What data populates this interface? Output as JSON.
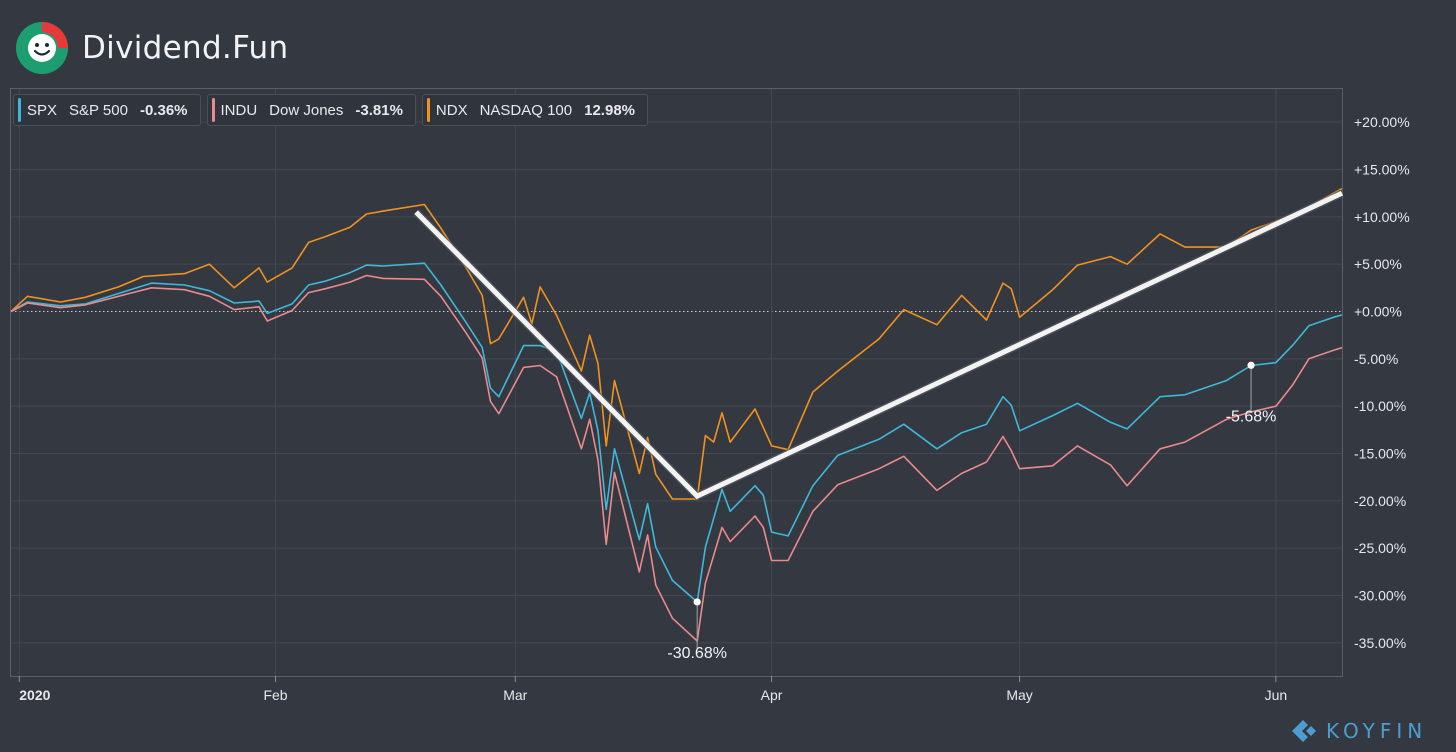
{
  "brand": {
    "name": "Dividend.Fun",
    "logo_icon": "smiley-logo-icon",
    "colors": {
      "ring": "#1d9e70",
      "accent": "#e8393a"
    }
  },
  "watermark": {
    "text": "KOYFIN",
    "icon": "koyfin-diamond-icon",
    "color": "#4d9dd0"
  },
  "legend": [
    {
      "ticker": "SPX",
      "name": "S&P 500",
      "change": "-0.36%",
      "color": "#3fb8d8"
    },
    {
      "ticker": "INDU",
      "name": "Dow Jones",
      "change": "-3.81%",
      "color": "#e98a8c"
    },
    {
      "ticker": "NDX",
      "name": "NASDAQ 100",
      "change": "12.98%",
      "color": "#f0921f"
    }
  ],
  "chart_data": {
    "type": "line",
    "ylim": [
      -38.5,
      23.5
    ],
    "y_ticks": [
      20,
      15,
      10,
      5,
      0,
      -5,
      -10,
      -15,
      -20,
      -25,
      -30,
      -35
    ],
    "y_tick_labels": [
      "+20.00%",
      "+15.00%",
      "+10.00%",
      "+5.00%",
      "+0.00%",
      "-5.00%",
      "-10.00%",
      "-15.00%",
      "-20.00%",
      "-25.00%",
      "-30.00%",
      "-35.00%"
    ],
    "x_domain": [
      "2019-12-31",
      "2020-06-09"
    ],
    "x_ticks": [
      {
        "date": "2020-01-01",
        "label": "2020"
      },
      {
        "date": "2020-02-01",
        "label": "Feb"
      },
      {
        "date": "2020-03-01",
        "label": "Mar"
      },
      {
        "date": "2020-04-01",
        "label": "Apr"
      },
      {
        "date": "2020-05-01",
        "label": "May"
      },
      {
        "date": "2020-06-01",
        "label": "Jun"
      }
    ],
    "grid": true,
    "series": [
      {
        "name": "NDX",
        "color": "#f0921f",
        "points": [
          [
            "2019-12-31",
            0
          ],
          [
            "2020-01-02",
            1.6
          ],
          [
            "2020-01-06",
            1.0
          ],
          [
            "2020-01-09",
            1.5
          ],
          [
            "2020-01-13",
            2.6
          ],
          [
            "2020-01-16",
            3.7
          ],
          [
            "2020-01-21",
            4.0
          ],
          [
            "2020-01-24",
            5.0
          ],
          [
            "2020-01-27",
            2.5
          ],
          [
            "2020-01-30",
            4.6
          ],
          [
            "2020-01-31",
            3.1
          ],
          [
            "2020-02-03",
            4.6
          ],
          [
            "2020-02-05",
            7.3
          ],
          [
            "2020-02-07",
            7.9
          ],
          [
            "2020-02-10",
            8.9
          ],
          [
            "2020-02-12",
            10.3
          ],
          [
            "2020-02-14",
            10.6
          ],
          [
            "2020-02-19",
            11.3
          ],
          [
            "2020-02-21",
            8.8
          ],
          [
            "2020-02-24",
            4.7
          ],
          [
            "2020-02-26",
            1.7
          ],
          [
            "2020-02-27",
            -3.4
          ],
          [
            "2020-02-28",
            -2.9
          ],
          [
            "2020-03-02",
            1.5
          ],
          [
            "2020-03-03",
            -1.3
          ],
          [
            "2020-03-04",
            2.6
          ],
          [
            "2020-03-06",
            -0.4
          ],
          [
            "2020-03-09",
            -6.3
          ],
          [
            "2020-03-10",
            -2.5
          ],
          [
            "2020-03-11",
            -5.5
          ],
          [
            "2020-03-12",
            -14.2
          ],
          [
            "2020-03-13",
            -7.3
          ],
          [
            "2020-03-16",
            -17.1
          ],
          [
            "2020-03-17",
            -13.3
          ],
          [
            "2020-03-18",
            -17.2
          ],
          [
            "2020-03-20",
            -19.8
          ],
          [
            "2020-03-23",
            -19.8
          ],
          [
            "2020-03-24",
            -13.1
          ],
          [
            "2020-03-25",
            -13.8
          ],
          [
            "2020-03-26",
            -10.7
          ],
          [
            "2020-03-27",
            -13.8
          ],
          [
            "2020-03-30",
            -10.3
          ],
          [
            "2020-04-01",
            -14.2
          ],
          [
            "2020-04-03",
            -14.6
          ],
          [
            "2020-04-06",
            -8.5
          ],
          [
            "2020-04-09",
            -6.3
          ],
          [
            "2020-04-14",
            -2.9
          ],
          [
            "2020-04-17",
            0.2
          ],
          [
            "2020-04-21",
            -1.4
          ],
          [
            "2020-04-24",
            1.7
          ],
          [
            "2020-04-27",
            -0.9
          ],
          [
            "2020-04-29",
            3.0
          ],
          [
            "2020-04-30",
            2.4
          ],
          [
            "2020-05-01",
            -0.6
          ],
          [
            "2020-05-05",
            2.3
          ],
          [
            "2020-05-08",
            4.9
          ],
          [
            "2020-05-12",
            5.8
          ],
          [
            "2020-05-14",
            5.0
          ],
          [
            "2020-05-18",
            8.2
          ],
          [
            "2020-05-21",
            6.8
          ],
          [
            "2020-05-26",
            6.8
          ],
          [
            "2020-05-29",
            8.6
          ],
          [
            "2020-06-01",
            9.5
          ],
          [
            "2020-06-03",
            10.2
          ],
          [
            "2020-06-05",
            11.0
          ],
          [
            "2020-06-08",
            12.5
          ],
          [
            "2020-06-09",
            12.98
          ]
        ]
      },
      {
        "name": "SPX",
        "color": "#3fb8d8",
        "points": [
          [
            "2019-12-31",
            0
          ],
          [
            "2020-01-02",
            1.0
          ],
          [
            "2020-01-06",
            0.6
          ],
          [
            "2020-01-09",
            0.8
          ],
          [
            "2020-01-13",
            1.9
          ],
          [
            "2020-01-17",
            3.0
          ],
          [
            "2020-01-21",
            2.8
          ],
          [
            "2020-01-24",
            2.2
          ],
          [
            "2020-01-27",
            0.9
          ],
          [
            "2020-01-30",
            1.1
          ],
          [
            "2020-01-31",
            -0.2
          ],
          [
            "2020-02-03",
            0.8
          ],
          [
            "2020-02-05",
            2.8
          ],
          [
            "2020-02-07",
            3.2
          ],
          [
            "2020-02-10",
            4.1
          ],
          [
            "2020-02-12",
            4.9
          ],
          [
            "2020-02-14",
            4.8
          ],
          [
            "2020-02-19",
            5.1
          ],
          [
            "2020-02-21",
            2.8
          ],
          [
            "2020-02-24",
            -1.1
          ],
          [
            "2020-02-26",
            -3.8
          ],
          [
            "2020-02-27",
            -8.1
          ],
          [
            "2020-02-28",
            -9.0
          ],
          [
            "2020-03-02",
            -3.6
          ],
          [
            "2020-03-04",
            -3.6
          ],
          [
            "2020-03-06",
            -4.2
          ],
          [
            "2020-03-09",
            -11.3
          ],
          [
            "2020-03-10",
            -8.6
          ],
          [
            "2020-03-11",
            -12.6
          ],
          [
            "2020-03-12",
            -20.9
          ],
          [
            "2020-03-13",
            -14.5
          ],
          [
            "2020-03-16",
            -24.1
          ],
          [
            "2020-03-17",
            -20.3
          ],
          [
            "2020-03-18",
            -24.9
          ],
          [
            "2020-03-20",
            -28.4
          ],
          [
            "2020-03-23",
            -30.68
          ],
          [
            "2020-03-24",
            -24.9
          ],
          [
            "2020-03-26",
            -18.8
          ],
          [
            "2020-03-27",
            -21.1
          ],
          [
            "2020-03-30",
            -18.4
          ],
          [
            "2020-03-31",
            -19.4
          ],
          [
            "2020-04-01",
            -23.3
          ],
          [
            "2020-04-03",
            -23.7
          ],
          [
            "2020-04-06",
            -18.4
          ],
          [
            "2020-04-09",
            -15.2
          ],
          [
            "2020-04-14",
            -13.5
          ],
          [
            "2020-04-17",
            -11.9
          ],
          [
            "2020-04-21",
            -14.5
          ],
          [
            "2020-04-24",
            -12.8
          ],
          [
            "2020-04-27",
            -11.9
          ],
          [
            "2020-04-29",
            -9.0
          ],
          [
            "2020-04-30",
            -9.9
          ],
          [
            "2020-05-01",
            -12.6
          ],
          [
            "2020-05-05",
            -11.0
          ],
          [
            "2020-05-08",
            -9.7
          ],
          [
            "2020-05-12",
            -11.7
          ],
          [
            "2020-05-14",
            -12.4
          ],
          [
            "2020-05-18",
            -9.0
          ],
          [
            "2020-05-21",
            -8.8
          ],
          [
            "2020-05-26",
            -7.3
          ],
          [
            "2020-05-29",
            -5.7
          ],
          [
            "2020-06-01",
            -5.4
          ],
          [
            "2020-06-03",
            -3.6
          ],
          [
            "2020-06-05",
            -1.5
          ],
          [
            "2020-06-08",
            -0.6
          ],
          [
            "2020-06-09",
            -0.36
          ]
        ]
      },
      {
        "name": "INDU",
        "color": "#e98a8c",
        "points": [
          [
            "2019-12-31",
            0
          ],
          [
            "2020-01-02",
            0.9
          ],
          [
            "2020-01-06",
            0.4
          ],
          [
            "2020-01-09",
            0.7
          ],
          [
            "2020-01-13",
            1.6
          ],
          [
            "2020-01-17",
            2.5
          ],
          [
            "2020-01-21",
            2.3
          ],
          [
            "2020-01-24",
            1.6
          ],
          [
            "2020-01-27",
            0.2
          ],
          [
            "2020-01-30",
            0.5
          ],
          [
            "2020-01-31",
            -1.0
          ],
          [
            "2020-02-03",
            0.1
          ],
          [
            "2020-02-05",
            2.0
          ],
          [
            "2020-02-07",
            2.4
          ],
          [
            "2020-02-10",
            3.1
          ],
          [
            "2020-02-12",
            3.8
          ],
          [
            "2020-02-14",
            3.5
          ],
          [
            "2020-02-19",
            3.4
          ],
          [
            "2020-02-21",
            1.6
          ],
          [
            "2020-02-24",
            -2.2
          ],
          [
            "2020-02-26",
            -4.9
          ],
          [
            "2020-02-27",
            -9.5
          ],
          [
            "2020-02-28",
            -10.8
          ],
          [
            "2020-03-02",
            -5.9
          ],
          [
            "2020-03-04",
            -5.7
          ],
          [
            "2020-03-06",
            -6.9
          ],
          [
            "2020-03-09",
            -14.5
          ],
          [
            "2020-03-10",
            -11.4
          ],
          [
            "2020-03-11",
            -15.7
          ],
          [
            "2020-03-12",
            -24.6
          ],
          [
            "2020-03-13",
            -17.0
          ],
          [
            "2020-03-16",
            -27.5
          ],
          [
            "2020-03-17",
            -23.6
          ],
          [
            "2020-03-18",
            -28.9
          ],
          [
            "2020-03-20",
            -32.4
          ],
          [
            "2020-03-23",
            -34.8
          ],
          [
            "2020-03-24",
            -28.7
          ],
          [
            "2020-03-26",
            -22.8
          ],
          [
            "2020-03-27",
            -24.3
          ],
          [
            "2020-03-30",
            -21.6
          ],
          [
            "2020-03-31",
            -22.8
          ],
          [
            "2020-04-01",
            -26.3
          ],
          [
            "2020-04-03",
            -26.3
          ],
          [
            "2020-04-06",
            -21.1
          ],
          [
            "2020-04-09",
            -18.3
          ],
          [
            "2020-04-14",
            -16.6
          ],
          [
            "2020-04-17",
            -15.3
          ],
          [
            "2020-04-21",
            -18.9
          ],
          [
            "2020-04-24",
            -17.1
          ],
          [
            "2020-04-27",
            -15.9
          ],
          [
            "2020-04-29",
            -13.2
          ],
          [
            "2020-04-30",
            -14.7
          ],
          [
            "2020-05-01",
            -16.6
          ],
          [
            "2020-05-05",
            -16.3
          ],
          [
            "2020-05-08",
            -14.2
          ],
          [
            "2020-05-12",
            -16.2
          ],
          [
            "2020-05-14",
            -18.4
          ],
          [
            "2020-05-18",
            -14.5
          ],
          [
            "2020-05-21",
            -13.8
          ],
          [
            "2020-05-26",
            -11.4
          ],
          [
            "2020-05-29",
            -10.6
          ],
          [
            "2020-06-01",
            -10.0
          ],
          [
            "2020-06-03",
            -7.8
          ],
          [
            "2020-06-05",
            -5.0
          ],
          [
            "2020-06-08",
            -4.1
          ],
          [
            "2020-06-09",
            -3.81
          ]
        ]
      }
    ],
    "trend_line": {
      "color": "#f3f3f3",
      "points": [
        [
          "2020-02-18",
          10.5
        ],
        [
          "2020-03-23",
          -19.5
        ],
        [
          "2020-06-09",
          12.5
        ]
      ]
    },
    "annotations": [
      {
        "label": "-30.68%",
        "date": "2020-03-23",
        "value": -30.68,
        "placement": "below"
      },
      {
        "label": "-5.68%",
        "date": "2020-05-29",
        "value": -5.68,
        "placement": "below"
      }
    ]
  }
}
